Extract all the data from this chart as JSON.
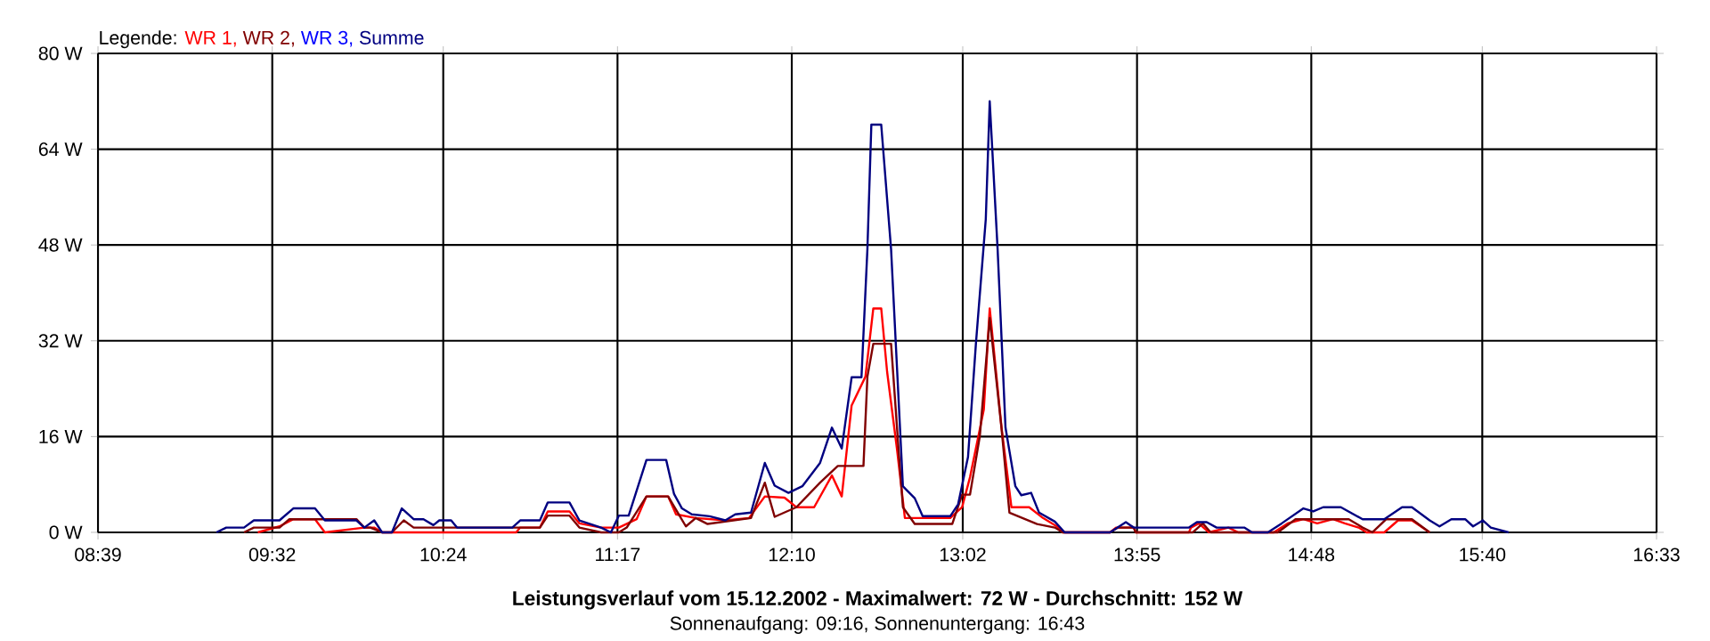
{
  "chart_data": {
    "type": "line",
    "title": "Leistungsverlauf vom 15.12.2002 - Maximalwert: 72 W - Durchschnitt: 152 W",
    "subtitle": "Sonnenaufgang: 09:16, Sonnenuntergang: 16:43",
    "legend_title": "Legende:",
    "legend": "top left",
    "grid": true,
    "marker": "none",
    "line_style": "solid",
    "xlim": [
      8.65,
      16.55
    ],
    "xticks": [
      {
        "value": 8.65,
        "label": "08:39"
      },
      {
        "value": 9.5333,
        "label": "09:32"
      },
      {
        "value": 10.4,
        "label": "10:24"
      },
      {
        "value": 11.2833,
        "label": "11:17"
      },
      {
        "value": 12.1667,
        "label": "12:10"
      },
      {
        "value": 13.0333,
        "label": "13:02"
      },
      {
        "value": 13.9167,
        "label": "13:55"
      },
      {
        "value": 14.8,
        "label": "14:48"
      },
      {
        "value": 15.6667,
        "label": "15:40"
      },
      {
        "value": 16.55,
        "label": "16:33"
      }
    ],
    "ylim": [
      0,
      80
    ],
    "yticks": [
      {
        "value": 0,
        "label": "0 W"
      },
      {
        "value": 16,
        "label": "16 W"
      },
      {
        "value": 32,
        "label": "32 W"
      },
      {
        "value": 48,
        "label": "48 W"
      },
      {
        "value": 64,
        "label": "64 W"
      },
      {
        "value": 80,
        "label": "80 W"
      }
    ],
    "series": [
      {
        "name": "WR 1,",
        "color": "#ff0000",
        "x": [
          9.46,
          9.57,
          9.64,
          9.75,
          9.8,
          10.0,
          10.05,
          10.09,
          10.77,
          10.79,
          10.89,
          10.93,
          11.04,
          11.09,
          11.2,
          11.29,
          11.38,
          11.43,
          11.54,
          11.58,
          11.68,
          11.83,
          11.95,
          12.03,
          12.13,
          12.19,
          12.28,
          12.37,
          12.42,
          12.47,
          12.54,
          12.58,
          12.62,
          12.65,
          12.7,
          12.74,
          12.79,
          12.97,
          13.03,
          13.07,
          13.14,
          13.17,
          13.23,
          13.28,
          13.37,
          13.44,
          13.51,
          13.54,
          13.78,
          13.81,
          13.9,
          13.91,
          14.18,
          14.19,
          14.23,
          14.28,
          14.38,
          14.43,
          14.61,
          14.68,
          14.76,
          14.83,
          14.91,
          14.97,
          15.04,
          15.08,
          15.17,
          15.24,
          15.31,
          15.4
        ],
        "values": [
          0,
          1,
          2.2,
          2.2,
          0,
          0.8,
          0.8,
          0,
          0,
          0.8,
          0.8,
          3.5,
          3.5,
          1.5,
          0.8,
          0.8,
          2.2,
          6,
          6,
          3,
          2.4,
          2,
          2.4,
          6,
          5.8,
          4.2,
          4.2,
          9.5,
          6,
          21.2,
          26,
          37.4,
          37.4,
          26.8,
          13.9,
          2.4,
          2.4,
          2.4,
          4.2,
          9.2,
          20.5,
          37.4,
          17.5,
          4.2,
          4.2,
          2.4,
          1,
          0,
          0,
          0.8,
          0.8,
          0,
          0,
          0.8,
          1.5,
          0,
          0.8,
          0,
          0,
          1.5,
          2.2,
          1.5,
          2.2,
          1.5,
          0.8,
          0,
          0,
          2,
          2,
          0
        ]
      },
      {
        "name": "WR 2,",
        "color": "#800000",
        "x": [
          9.39,
          9.44,
          9.57,
          9.62,
          9.96,
          10.0,
          10.03,
          10.09,
          10.14,
          10.2,
          10.25,
          10.75,
          10.89,
          10.93,
          11.04,
          11.09,
          11.2,
          11.29,
          11.33,
          11.43,
          11.54,
          11.63,
          11.68,
          11.74,
          11.96,
          12.03,
          12.08,
          12.19,
          12.31,
          12.4,
          12.53,
          12.55,
          12.58,
          12.67,
          12.71,
          12.73,
          12.79,
          12.98,
          13.03,
          13.07,
          13.12,
          13.17,
          13.23,
          13.27,
          13.41,
          13.5,
          13.54,
          13.78,
          13.82,
          13.9,
          13.91,
          14.2,
          14.25,
          14.29,
          14.63,
          14.72,
          14.81,
          14.99,
          15.06,
          15.11,
          15.18,
          15.31,
          15.4
        ],
        "values": [
          0,
          0.8,
          0.8,
          2.2,
          2.2,
          0.8,
          0.8,
          0,
          0,
          2,
          0.8,
          0.8,
          0.8,
          2.8,
          2.8,
          0.8,
          0,
          0,
          0.8,
          6,
          6,
          1,
          2.4,
          1.4,
          2.4,
          8.3,
          2.6,
          4.2,
          8.3,
          11.1,
          11.1,
          26,
          31.5,
          31.5,
          12.9,
          4.2,
          1.4,
          1.4,
          6.3,
          6.3,
          16.1,
          35.8,
          17.3,
          3.3,
          1.4,
          0.8,
          0,
          0,
          0.8,
          0.8,
          0,
          0,
          1.5,
          0,
          0,
          2.2,
          2.2,
          2.2,
          0.8,
          0,
          2.2,
          2.2,
          0
        ]
      },
      {
        "name": "WR 3,",
        "color": "#0000ff"
      },
      {
        "name": "Summe",
        "color": "#000080",
        "x": [
          9.25,
          9.3,
          9.39,
          9.44,
          9.57,
          9.64,
          9.75,
          9.8,
          9.96,
          10.0,
          10.05,
          10.09,
          10.14,
          10.19,
          10.25,
          10.3,
          10.35,
          10.38,
          10.44,
          10.47,
          10.75,
          10.79,
          10.89,
          10.93,
          11.04,
          11.09,
          11.2,
          11.25,
          11.29,
          11.34,
          11.43,
          11.53,
          11.57,
          11.61,
          11.66,
          11.75,
          11.83,
          11.88,
          11.96,
          12.03,
          12.08,
          12.15,
          12.22,
          12.31,
          12.37,
          12.42,
          12.47,
          12.52,
          12.55,
          12.57,
          12.62,
          12.67,
          12.7,
          12.73,
          12.79,
          12.83,
          12.97,
          13.01,
          13.06,
          13.1,
          13.15,
          13.17,
          13.21,
          13.25,
          13.3,
          13.33,
          13.38,
          13.42,
          13.5,
          13.55,
          13.78,
          13.86,
          13.9,
          14.18,
          14.22,
          14.27,
          14.32,
          14.46,
          14.5,
          14.58,
          14.65,
          14.76,
          14.81,
          14.86,
          14.95,
          15.06,
          15.17,
          15.26,
          15.31,
          15.4,
          15.45,
          15.51,
          15.58,
          15.62,
          15.67,
          15.71,
          15.8
        ],
        "values": [
          0,
          0.8,
          0.8,
          2,
          2,
          4,
          4,
          2,
          2,
          0.8,
          2,
          0,
          0,
          4,
          2.2,
          2.2,
          1.2,
          2,
          2,
          0.8,
          0.8,
          2,
          2,
          5,
          5,
          2,
          0.8,
          0,
          2.8,
          2.8,
          12.1,
          12.1,
          6.4,
          4,
          3,
          2.7,
          2,
          3,
          3.3,
          11.6,
          7.8,
          6.6,
          7.7,
          11.6,
          17.5,
          14,
          25.9,
          25.9,
          47.3,
          68.1,
          68.1,
          47.3,
          27.5,
          7.7,
          5.7,
          2.7,
          2.7,
          4.7,
          12.6,
          31.5,
          52.3,
          72,
          47.3,
          17.5,
          7.7,
          6.2,
          6.6,
          3.3,
          1.8,
          0,
          0,
          1.7,
          0.8,
          0.8,
          1.7,
          1.7,
          0.8,
          0.8,
          0,
          0,
          1.5,
          4,
          3.5,
          4.2,
          4.2,
          2.2,
          2.2,
          4.2,
          4.2,
          2,
          1,
          2.2,
          2.2,
          1,
          2,
          0.8,
          0
        ]
      }
    ]
  }
}
